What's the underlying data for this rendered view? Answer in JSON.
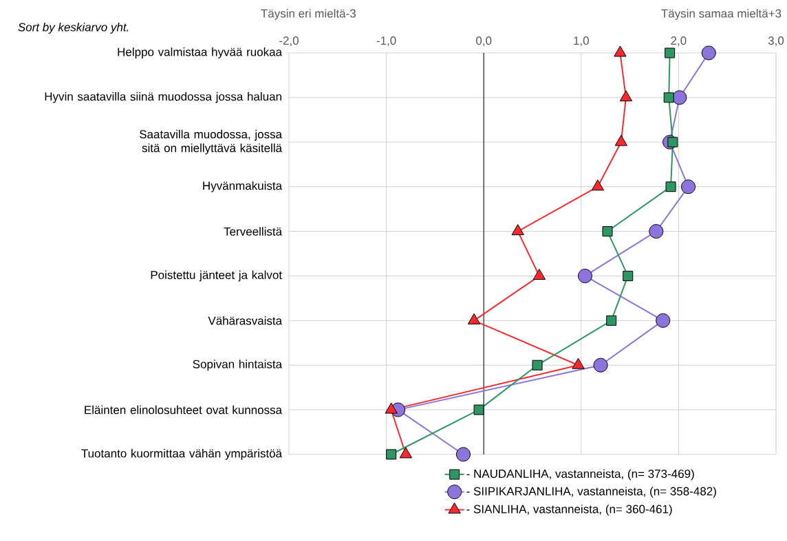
{
  "chart_data": {
    "type": "line",
    "orientation": "horizontal",
    "title": "Sort by keskiarvo yht.",
    "annotations": [
      "Täysin eri mieltä-3",
      "Täysin samaa mieltä+3"
    ],
    "categories": [
      "Helppo valmistaa hyvää ruokaa",
      "Hyvin saatavilla siinä muodossa jossa haluan",
      "Saatavilla muodossa, jossa sitä on miellyttävä käsitellä",
      "Hyvänmakuista",
      "Terveellistä",
      "Poistettu jänteet ja kalvot",
      "Vähärasvaista",
      "Sopivan hintaista",
      "Eläinten elinolosuhteet ovat kunnossa",
      "Tuotanto kuormittaa vähän ympäristöä"
    ],
    "series": [
      {
        "name": "- NAUDANLIHA, vastanneista, (n= 373-469)",
        "color": "#2e9663",
        "marker": "square",
        "values": [
          1.91,
          1.9,
          1.94,
          1.92,
          1.27,
          1.48,
          1.31,
          0.55,
          -0.05,
          -0.95
        ]
      },
      {
        "name": "- SIIPIKARJANLIHA, vastanneista, (n= 358-482)",
        "color": "#8c74dc",
        "marker": "circle",
        "values": [
          2.31,
          2.01,
          1.91,
          2.1,
          1.77,
          1.04,
          1.84,
          1.2,
          -0.88,
          -0.21
        ]
      },
      {
        "name": "- SIANLIHA, vastanneista, (n= 360-461)",
        "color": "#f82a2e",
        "marker": "triangle",
        "values": [
          1.4,
          1.46,
          1.41,
          1.17,
          0.35,
          0.57,
          -0.1,
          0.97,
          -0.95,
          -0.8
        ]
      }
    ],
    "xlim": [
      -2,
      3
    ],
    "xticks": [
      {
        "value": -2,
        "label": "-2,0"
      },
      {
        "value": -1,
        "label": "-1,0"
      },
      {
        "value": 0,
        "label": "0,0"
      },
      {
        "value": 1,
        "label": "1,0"
      },
      {
        "value": 2,
        "label": "2,0"
      },
      {
        "value": 3,
        "label": "3,0"
      }
    ],
    "ref_lines": [
      {
        "axis": "x",
        "value": 0,
        "color": "#000000"
      }
    ],
    "grid": true,
    "legend": "bottom",
    "line_style": "solid"
  }
}
